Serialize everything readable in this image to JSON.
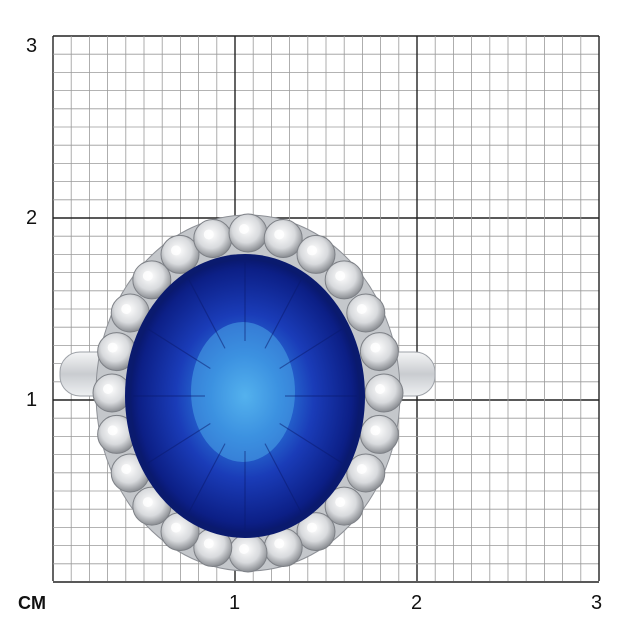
{
  "scale": {
    "unit_label": "CM",
    "y_labels": [
      "3",
      "2",
      "1"
    ],
    "x_labels": [
      "1",
      "2",
      "3"
    ]
  },
  "photo": {
    "subject": "ring-with-oval-blue-sapphire-and-diamond-halo",
    "colors": {
      "sapphire_dark": "#0a1a6e",
      "sapphire_mid": "#1d3fc0",
      "sapphire_light": "#4aa6e8",
      "metal": "#d9dbde",
      "grid_minor": "#9a9a9a",
      "grid_major": "#222222"
    }
  }
}
